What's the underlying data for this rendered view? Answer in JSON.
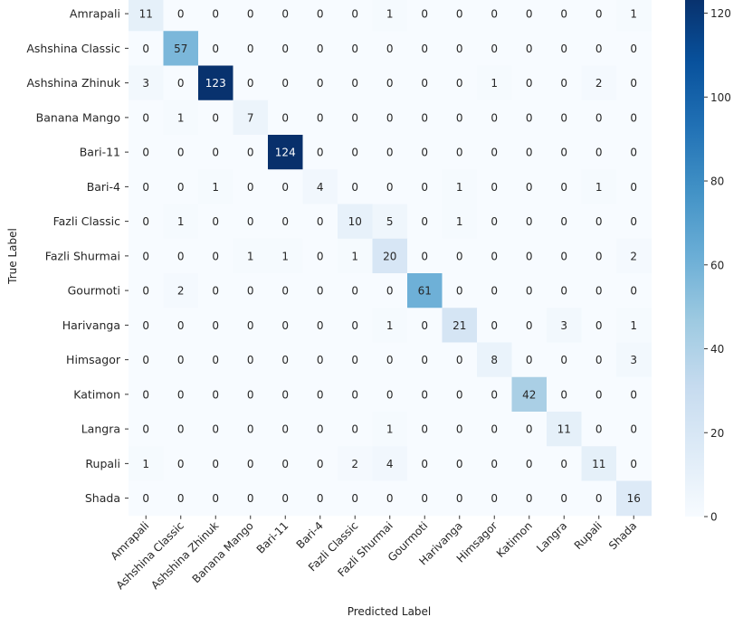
{
  "chart_data": {
    "type": "heatmap",
    "xlabel": "Predicted Label",
    "ylabel": "True Label",
    "x_categories": [
      "Amrapali",
      "Ashshina Classic",
      "Ashshina Zhinuk",
      "Banana Mango",
      "Bari-11",
      "Bari-4",
      "Fazli Classic",
      "Fazli Shurmai",
      "Gourmoti",
      "Harivanga",
      "Himsagor",
      "Katimon",
      "Langra",
      "Rupali",
      "Shada"
    ],
    "y_categories": [
      "Amrapali",
      "Ashshina Classic",
      "Ashshina Zhinuk",
      "Banana Mango",
      "Bari-11",
      "Bari-4",
      "Fazli Classic",
      "Fazli Shurmai",
      "Gourmoti",
      "Harivanga",
      "Himsagor",
      "Katimon",
      "Langra",
      "Rupali",
      "Shada"
    ],
    "values": [
      [
        11,
        0,
        0,
        0,
        0,
        0,
        0,
        1,
        0,
        0,
        0,
        0,
        0,
        0,
        1
      ],
      [
        0,
        57,
        0,
        0,
        0,
        0,
        0,
        0,
        0,
        0,
        0,
        0,
        0,
        0,
        0
      ],
      [
        3,
        0,
        123,
        0,
        0,
        0,
        0,
        0,
        0,
        0,
        1,
        0,
        0,
        2,
        0
      ],
      [
        0,
        1,
        0,
        7,
        0,
        0,
        0,
        0,
        0,
        0,
        0,
        0,
        0,
        0,
        0
      ],
      [
        0,
        0,
        0,
        0,
        124,
        0,
        0,
        0,
        0,
        0,
        0,
        0,
        0,
        0,
        0
      ],
      [
        0,
        0,
        1,
        0,
        0,
        4,
        0,
        0,
        0,
        1,
        0,
        0,
        0,
        1,
        0
      ],
      [
        0,
        1,
        0,
        0,
        0,
        0,
        10,
        5,
        0,
        1,
        0,
        0,
        0,
        0,
        0
      ],
      [
        0,
        0,
        0,
        1,
        1,
        0,
        1,
        20,
        0,
        0,
        0,
        0,
        0,
        0,
        2
      ],
      [
        0,
        2,
        0,
        0,
        0,
        0,
        0,
        0,
        61,
        0,
        0,
        0,
        0,
        0,
        0
      ],
      [
        0,
        0,
        0,
        0,
        0,
        0,
        0,
        1,
        0,
        21,
        0,
        0,
        3,
        0,
        1
      ],
      [
        0,
        0,
        0,
        0,
        0,
        0,
        0,
        0,
        0,
        0,
        8,
        0,
        0,
        0,
        3
      ],
      [
        0,
        0,
        0,
        0,
        0,
        0,
        0,
        0,
        0,
        0,
        0,
        42,
        0,
        0,
        0
      ],
      [
        0,
        0,
        0,
        0,
        0,
        0,
        0,
        1,
        0,
        0,
        0,
        0,
        11,
        0,
        0
      ],
      [
        1,
        0,
        0,
        0,
        0,
        0,
        2,
        4,
        0,
        0,
        0,
        0,
        0,
        11,
        0
      ],
      [
        0,
        0,
        0,
        0,
        0,
        0,
        0,
        0,
        0,
        0,
        0,
        0,
        0,
        0,
        16
      ]
    ],
    "colormap": "Blues",
    "vmin": 0,
    "vmax": 124,
    "colorbar_ticks": [
      0,
      20,
      40,
      60,
      80,
      100,
      120
    ]
  }
}
